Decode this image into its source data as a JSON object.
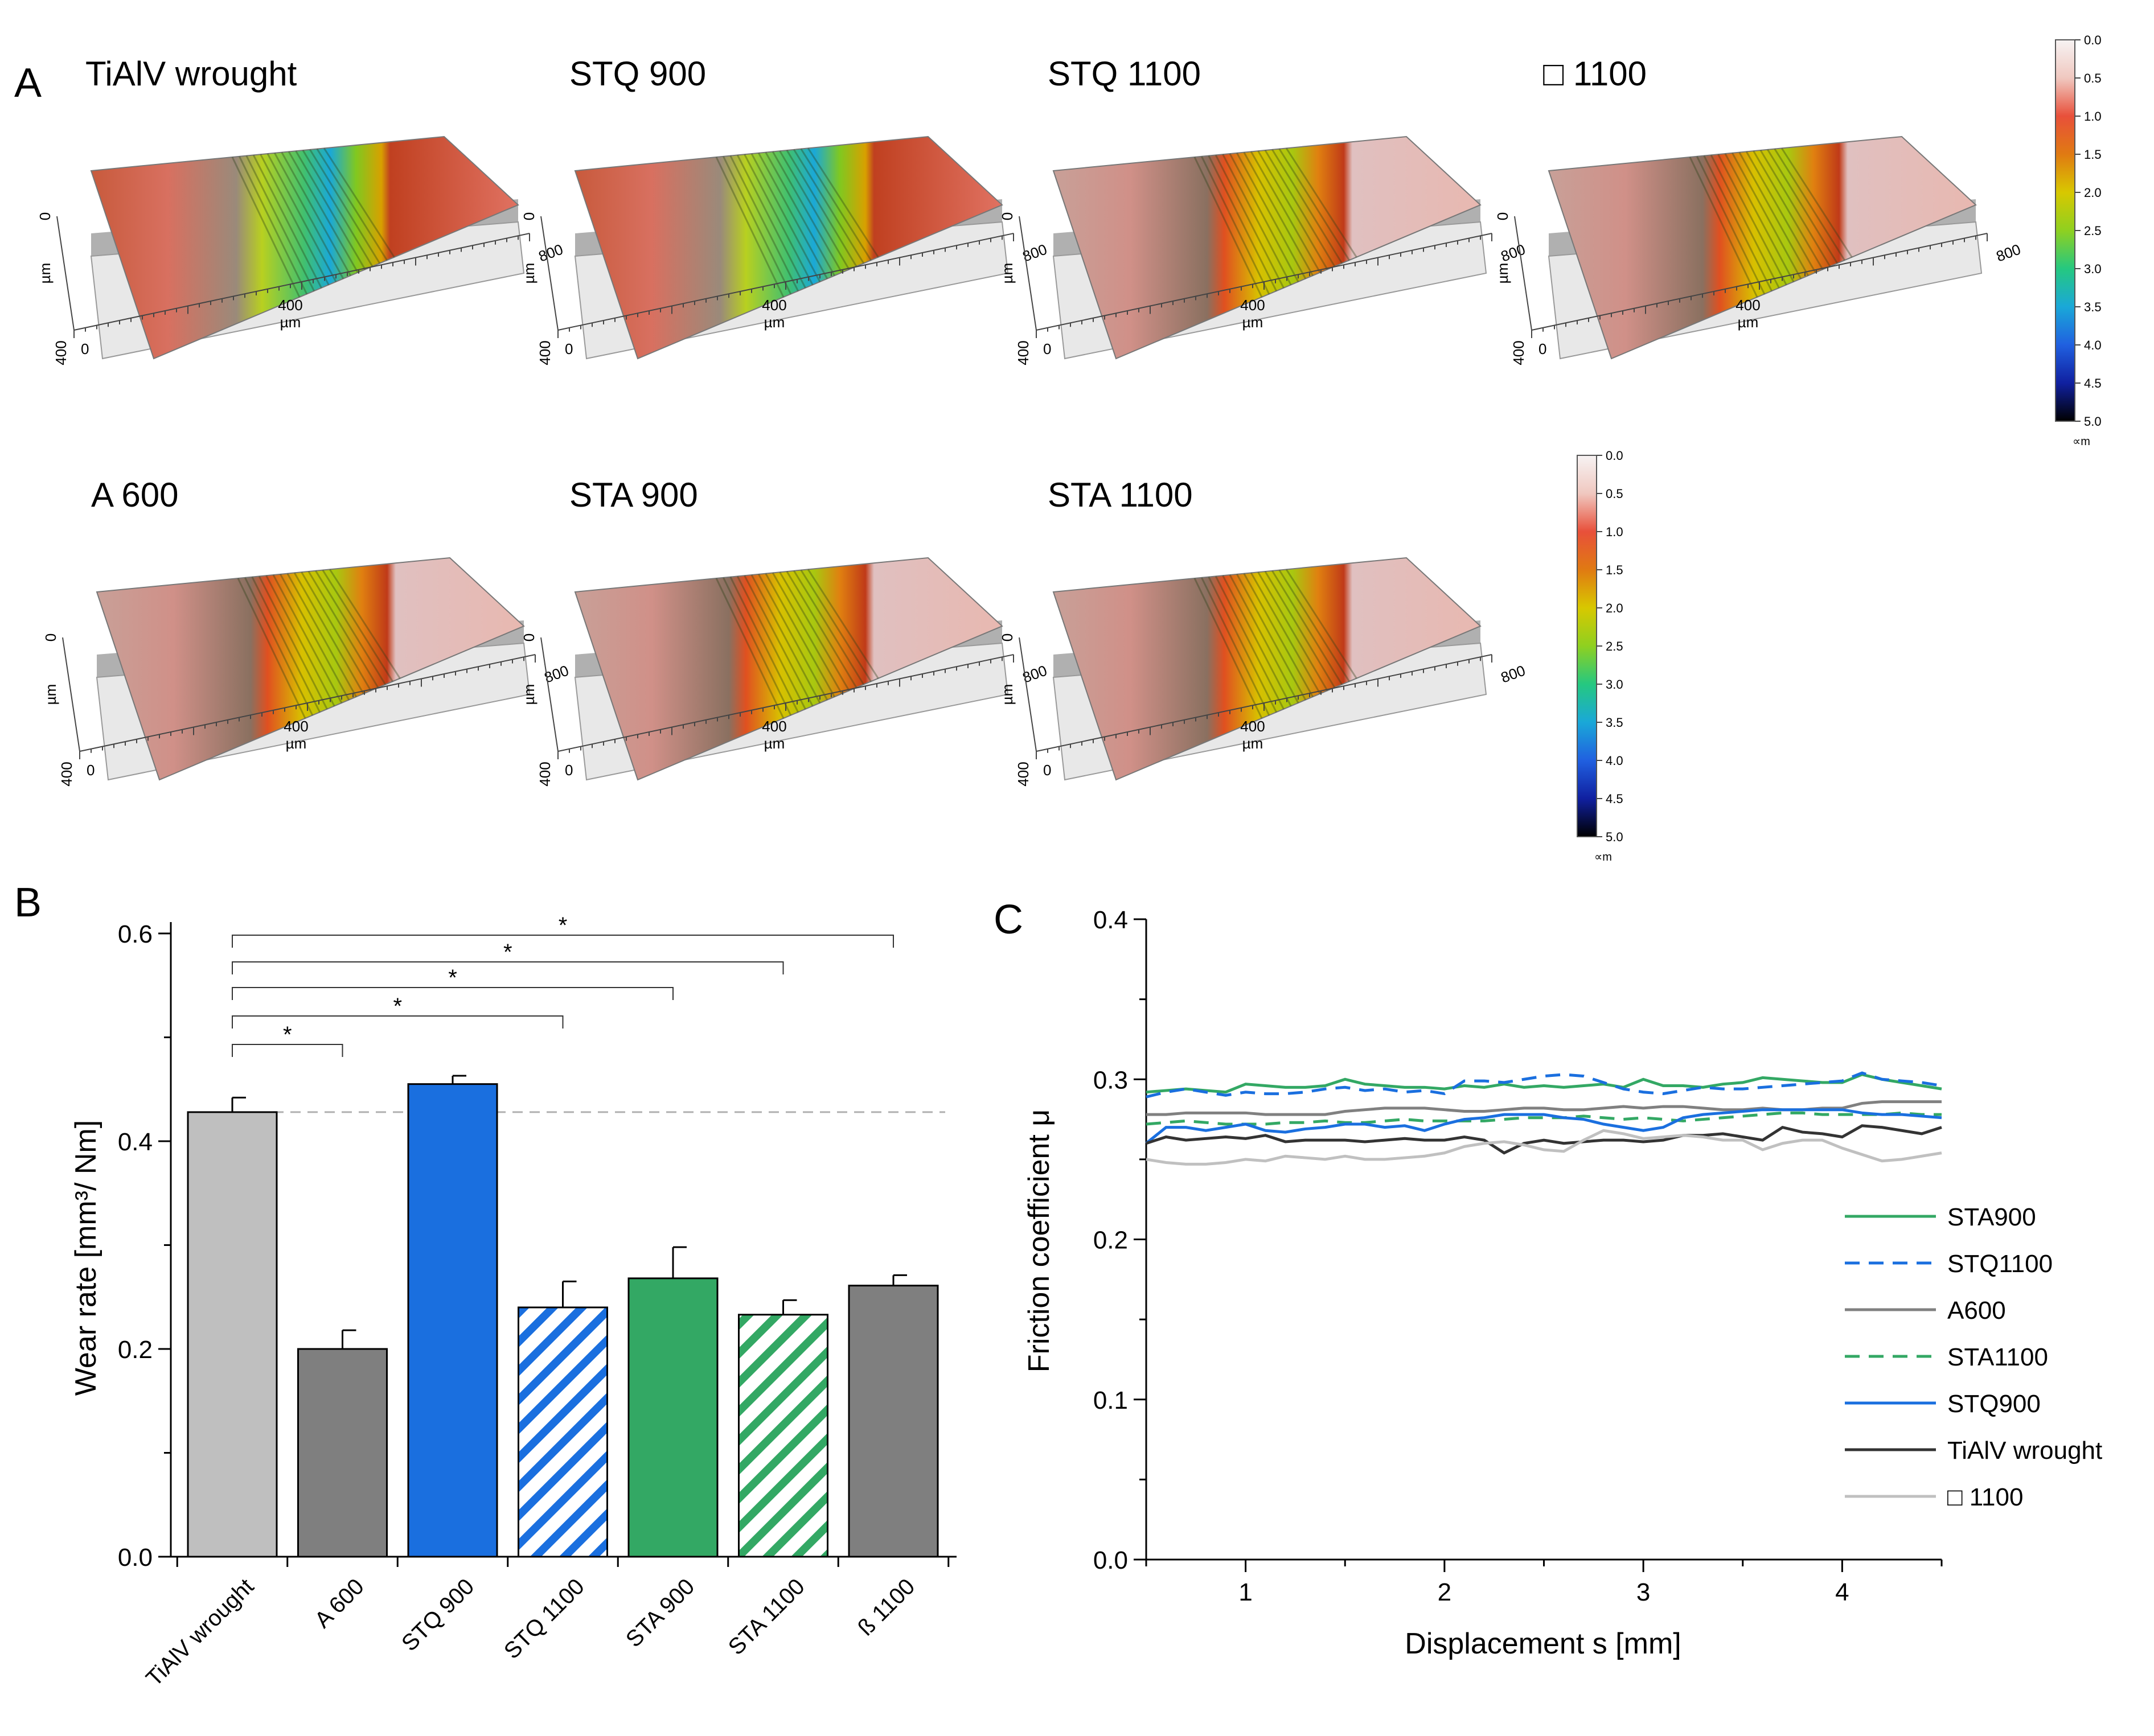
{
  "panel_labels": {
    "a": "A",
    "b": "B",
    "c": "C"
  },
  "panel_a": {
    "samples": [
      {
        "title": "TiAlV wrought",
        "coloring": "deep"
      },
      {
        "title": "STQ 900",
        "coloring": "deep"
      },
      {
        "title": "STQ 1100",
        "coloring": "medium"
      },
      {
        "title": "□ 1100",
        "coloring": "medium"
      },
      {
        "title": "A 600",
        "coloring": "medium"
      },
      {
        "title": "STA 900",
        "coloring": "medium"
      },
      {
        "title": "STA 1100",
        "coloring": "medium"
      }
    ],
    "axis_ticks": {
      "x_mid": "400",
      "x_end": "800",
      "y_start": "0",
      "y_end": "400",
      "x_origin": "0"
    },
    "axis_unit": "µm",
    "colorbar": {
      "ticks": [
        "0.0",
        "0.5",
        "1.0",
        "1.5",
        "2.0",
        "2.5",
        "3.0",
        "3.5",
        "4.0",
        "4.5",
        "5.0"
      ],
      "unit": "∝m",
      "colors": [
        "#f7f3f3",
        "#f0c8c0",
        "#e8503a",
        "#e07a12",
        "#d8c800",
        "#8fd020",
        "#25c880",
        "#1aa8d8",
        "#2060e0",
        "#1020a0",
        "#000000"
      ]
    }
  },
  "chart_data": [
    {
      "type": "bar",
      "panel": "B",
      "categories": [
        "TiAlV wrought",
        "A 600",
        "STQ 900",
        "STQ 1100",
        "STA 900",
        "STA 1100",
        "ß 1100"
      ],
      "values": [
        0.428,
        0.2,
        0.455,
        0.24,
        0.268,
        0.233,
        0.261
      ],
      "errors": [
        0.014,
        0.018,
        0.008,
        0.025,
        0.03,
        0.014,
        0.01
      ],
      "fill_colors": [
        "#bfbfbf",
        "#7f7f7f",
        "#1a6fdf",
        "#1a6fdf",
        "#33a864",
        "#33a864",
        "#7f7f7f"
      ],
      "hatched": [
        false,
        false,
        false,
        true,
        false,
        true,
        false
      ],
      "ylabel": "Wear rate [mm³/ Nm]",
      "ylim": [
        0.0,
        0.6
      ],
      "yticks": [
        "0.0",
        "0.2",
        "0.4",
        "0.6"
      ],
      "reference_line": 0.428,
      "significance": [
        {
          "from": "TiAlV wrought",
          "to": "A 600",
          "label": "*"
        },
        {
          "from": "TiAlV wrought",
          "to": "STQ 1100",
          "label": "*"
        },
        {
          "from": "TiAlV wrought",
          "to": "STA 900",
          "label": "*"
        },
        {
          "from": "TiAlV wrought",
          "to": "STA 1100",
          "label": "*"
        },
        {
          "from": "TiAlV wrought",
          "to": "ß 1100",
          "label": "*"
        }
      ]
    },
    {
      "type": "line",
      "panel": "C",
      "xlabel": "Displacement s [mm]",
      "ylabel": "Friction coefficient μ",
      "xlim": [
        0.5,
        4.5
      ],
      "ylim": [
        0.0,
        0.4
      ],
      "xticks": [
        "1",
        "2",
        "3",
        "4"
      ],
      "yticks": [
        "0.0",
        "0.1",
        "0.2",
        "0.3",
        "0.4"
      ],
      "x": [
        0.5,
        0.6,
        0.7,
        0.8,
        0.9,
        1.0,
        1.1,
        1.2,
        1.3,
        1.4,
        1.5,
        1.6,
        1.7,
        1.8,
        1.9,
        2.0,
        2.1,
        2.2,
        2.3,
        2.4,
        2.5,
        2.6,
        2.7,
        2.8,
        2.9,
        3.0,
        3.1,
        3.2,
        3.3,
        3.4,
        3.5,
        3.6,
        3.7,
        3.8,
        3.9,
        4.0,
        4.1,
        4.2,
        4.3,
        4.4,
        4.5
      ],
      "series": [
        {
          "name": "STA900",
          "color": "#33a864",
          "dash": false,
          "values": [
            0.292,
            0.293,
            0.294,
            0.293,
            0.292,
            0.297,
            0.296,
            0.295,
            0.295,
            0.296,
            0.3,
            0.297,
            0.296,
            0.295,
            0.295,
            0.294,
            0.296,
            0.295,
            0.297,
            0.295,
            0.296,
            0.295,
            0.296,
            0.297,
            0.295,
            0.3,
            0.296,
            0.296,
            0.295,
            0.297,
            0.298,
            0.301,
            0.3,
            0.299,
            0.298,
            0.298,
            0.303,
            0.3,
            0.298,
            0.296,
            0.294
          ]
        },
        {
          "name": "STQ1100",
          "color": "#1a6fdf",
          "dash": true,
          "values": [
            0.289,
            0.292,
            0.294,
            0.292,
            0.29,
            0.292,
            0.291,
            0.291,
            0.292,
            0.294,
            0.295,
            0.293,
            0.294,
            0.292,
            0.293,
            0.291,
            0.299,
            0.299,
            0.298,
            0.3,
            0.302,
            0.303,
            0.302,
            0.298,
            0.294,
            0.292,
            0.291,
            0.293,
            0.295,
            0.294,
            0.294,
            0.295,
            0.296,
            0.297,
            0.298,
            0.299,
            0.304,
            0.3,
            0.299,
            0.298,
            0.296
          ]
        },
        {
          "name": "A600",
          "color": "#808080",
          "dash": false,
          "values": [
            0.278,
            0.278,
            0.279,
            0.279,
            0.279,
            0.279,
            0.278,
            0.278,
            0.278,
            0.278,
            0.28,
            0.281,
            0.282,
            0.282,
            0.282,
            0.281,
            0.28,
            0.28,
            0.281,
            0.282,
            0.282,
            0.281,
            0.281,
            0.282,
            0.283,
            0.282,
            0.283,
            0.283,
            0.282,
            0.281,
            0.281,
            0.282,
            0.281,
            0.281,
            0.282,
            0.282,
            0.285,
            0.286,
            0.286,
            0.286,
            0.286
          ]
        },
        {
          "name": "STA1100",
          "color": "#33a864",
          "dash": true,
          "values": [
            0.272,
            0.273,
            0.274,
            0.273,
            0.272,
            0.272,
            0.272,
            0.273,
            0.273,
            0.274,
            0.273,
            0.273,
            0.274,
            0.275,
            0.274,
            0.274,
            0.274,
            0.274,
            0.275,
            0.276,
            0.276,
            0.276,
            0.277,
            0.276,
            0.275,
            0.276,
            0.275,
            0.274,
            0.275,
            0.276,
            0.277,
            0.278,
            0.279,
            0.279,
            0.278,
            0.278,
            0.278,
            0.278,
            0.279,
            0.278,
            0.278
          ]
        },
        {
          "name": "STQ900",
          "color": "#1a6fdf",
          "dash": false,
          "values": [
            0.26,
            0.27,
            0.27,
            0.268,
            0.27,
            0.272,
            0.268,
            0.267,
            0.269,
            0.27,
            0.272,
            0.272,
            0.27,
            0.271,
            0.268,
            0.272,
            0.275,
            0.276,
            0.278,
            0.278,
            0.278,
            0.276,
            0.275,
            0.272,
            0.27,
            0.268,
            0.27,
            0.276,
            0.278,
            0.279,
            0.28,
            0.281,
            0.281,
            0.281,
            0.281,
            0.281,
            0.279,
            0.278,
            0.278,
            0.277,
            0.276
          ]
        },
        {
          "name": "TiAlV wrought",
          "color": "#333333",
          "dash": false,
          "values": [
            0.26,
            0.264,
            0.262,
            0.263,
            0.264,
            0.263,
            0.265,
            0.261,
            0.262,
            0.262,
            0.262,
            0.261,
            0.262,
            0.263,
            0.262,
            0.262,
            0.264,
            0.262,
            0.254,
            0.26,
            0.262,
            0.26,
            0.261,
            0.262,
            0.262,
            0.261,
            0.262,
            0.265,
            0.265,
            0.266,
            0.264,
            0.262,
            0.27,
            0.267,
            0.266,
            0.264,
            0.271,
            0.27,
            0.268,
            0.266,
            0.27
          ]
        },
        {
          "name": "□ 1100",
          "color": "#c0c0c0",
          "dash": false,
          "values": [
            0.25,
            0.248,
            0.247,
            0.247,
            0.248,
            0.25,
            0.249,
            0.252,
            0.251,
            0.25,
            0.252,
            0.25,
            0.25,
            0.251,
            0.252,
            0.254,
            0.258,
            0.26,
            0.261,
            0.259,
            0.256,
            0.255,
            0.262,
            0.268,
            0.266,
            0.263,
            0.264,
            0.265,
            0.264,
            0.262,
            0.262,
            0.256,
            0.26,
            0.262,
            0.262,
            0.257,
            0.253,
            0.249,
            0.25,
            0.252,
            0.254
          ]
        }
      ]
    }
  ]
}
